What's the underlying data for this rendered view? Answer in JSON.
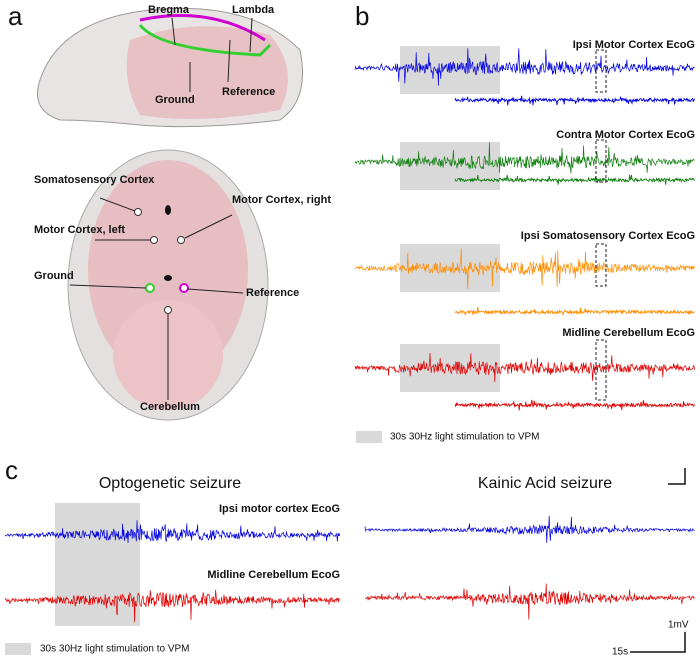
{
  "panel_a": {
    "letter": "a",
    "skull_labels": [
      "Bregma",
      "Lambda",
      "Ground",
      "Reference"
    ],
    "brain_labels": [
      "Somatosensory Cortex",
      "Motor Cortex, left",
      "Motor Cortex, right",
      "Ground",
      "Reference",
      "Cerebellum"
    ]
  },
  "panel_b": {
    "letter": "b",
    "trace_labels": [
      "Ipsi Motor Cortex EcoG",
      "Contra Motor Cortex EcoG",
      "Ipsi Somatosensory Cortex EcoG",
      "Midline Cerebellum EcoG"
    ],
    "legend": "30s 30Hz light stimulation to VPM"
  },
  "panel_c": {
    "letter": "c",
    "titles": [
      "Optogenetic seizure",
      "Kainic Acid seizure"
    ],
    "trace_labels": [
      "Ipsi motor cortex EcoG",
      "Midline Cerebellum EcoG"
    ],
    "legend": "30s 30Hz light stimulation to VPM",
    "scale_voltage": "1mV",
    "scale_time": "15s"
  }
}
